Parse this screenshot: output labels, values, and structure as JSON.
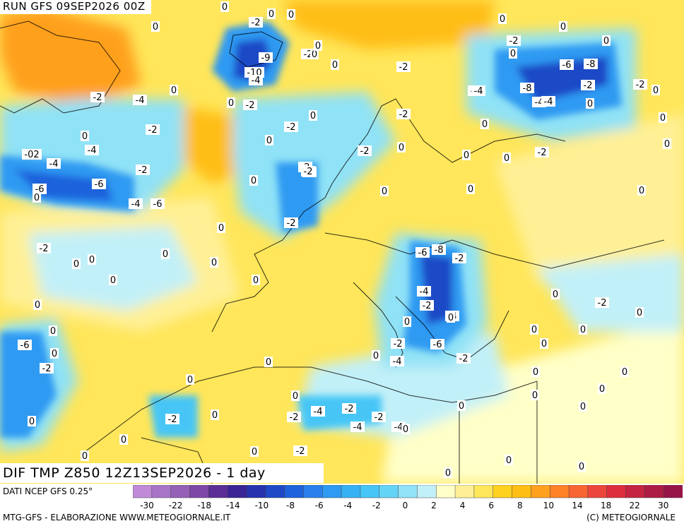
{
  "run_label": "RUN GFS 09SEP2026 00Z",
  "map_title": "DIF TMP Z850 12Z13SEP2026 - 1 day",
  "dati": "DATI NCEP GFS 0.25°",
  "footer_left": "MTG-GFS - ELABORAZIONE WWW.METEOGIORNALE.IT",
  "footer_right": "(C) METEOGIORNALE",
  "colorbar": {
    "colors": [
      "#c08ad8",
      "#a774c8",
      "#9460b8",
      "#7e48a6",
      "#5a2e96",
      "#3a2496",
      "#2632ae",
      "#1e48c6",
      "#1e62dc",
      "#2a80ec",
      "#2e9af2",
      "#36b2f4",
      "#46c6f6",
      "#64d4f6",
      "#90e2f6",
      "#c2f0f8",
      "#ffffc8",
      "#fff096",
      "#ffe65a",
      "#ffd21e",
      "#ffbe14",
      "#ffa01e",
      "#ff8228",
      "#f86432",
      "#ec463c",
      "#dc2e3c",
      "#c42440",
      "#ac1c44",
      "#961448"
    ],
    "tick_labels": [
      "-30",
      "-22",
      "-18",
      "-14",
      "-10",
      "-8",
      "-6",
      "-4",
      "-2",
      "0",
      "2",
      "4",
      "6",
      "8",
      "10",
      "14",
      "18",
      "22",
      "30"
    ]
  },
  "map_values": [
    {
      "t": "0"
    },
    {
      "t": "-2"
    },
    {
      "t": "0"
    },
    {
      "t": "0"
    },
    {
      "t": "-2"
    },
    {
      "t": "-9"
    },
    {
      "t": "-10"
    },
    {
      "t": "-4"
    },
    {
      "t": "-2"
    },
    {
      "t": "0"
    },
    {
      "t": "0"
    },
    {
      "t": "0"
    },
    {
      "t": "-2"
    },
    {
      "t": "-4"
    },
    {
      "t": "0"
    },
    {
      "t": "-2"
    },
    {
      "t": "-2"
    },
    {
      "t": "0"
    },
    {
      "t": "-2"
    },
    {
      "t": "-2"
    },
    {
      "t": "-4"
    },
    {
      "t": "-2"
    },
    {
      "t": "-2"
    },
    {
      "t": "0"
    },
    {
      "t": "-2"
    },
    {
      "t": "-4"
    },
    {
      "t": "0"
    },
    {
      "t": "-02"
    },
    {
      "t": "-4"
    },
    {
      "t": "-2"
    },
    {
      "t": "-6"
    },
    {
      "t": "-6"
    },
    {
      "t": "0"
    },
    {
      "t": "-4"
    },
    {
      "t": "-6"
    },
    {
      "t": "0"
    },
    {
      "t": "-2"
    },
    {
      "t": "-2"
    },
    {
      "t": "0"
    },
    {
      "t": "-2"
    },
    {
      "t": "0"
    },
    {
      "t": "0"
    },
    {
      "t": "0"
    },
    {
      "t": "0"
    },
    {
      "t": "0"
    },
    {
      "t": "0"
    },
    {
      "t": "0"
    },
    {
      "t": "0"
    },
    {
      "t": "0"
    },
    {
      "t": "-2"
    },
    {
      "t": "0"
    },
    {
      "t": "0"
    },
    {
      "t": "0"
    },
    {
      "t": "0"
    },
    {
      "t": "-4"
    },
    {
      "t": "-8"
    },
    {
      "t": "-6"
    },
    {
      "t": "-8"
    },
    {
      "t": "-2"
    },
    {
      "t": "-2"
    },
    {
      "t": "-4"
    },
    {
      "t": "-4"
    },
    {
      "t": "0"
    },
    {
      "t": "0"
    },
    {
      "t": "-2"
    },
    {
      "t": "0"
    },
    {
      "t": "0"
    },
    {
      "t": "0"
    },
    {
      "t": "0"
    },
    {
      "t": "0"
    },
    {
      "t": "-6"
    },
    {
      "t": "-8"
    },
    {
      "t": "-2"
    },
    {
      "t": "-4"
    },
    {
      "t": "-2"
    },
    {
      "t": "-4"
    },
    {
      "t": "0"
    },
    {
      "t": "-6"
    },
    {
      "t": "-2"
    },
    {
      "t": "-2"
    },
    {
      "t": "-4"
    },
    {
      "t": "0"
    },
    {
      "t": "0"
    },
    {
      "t": "0"
    },
    {
      "t": "0"
    },
    {
      "t": "0"
    },
    {
      "t": "0"
    },
    {
      "t": "0"
    },
    {
      "t": "0"
    },
    {
      "t": "0"
    },
    {
      "t": "-2"
    },
    {
      "t": "0"
    },
    {
      "t": "0"
    },
    {
      "t": "0"
    },
    {
      "t": "0"
    },
    {
      "t": "-6"
    },
    {
      "t": "0"
    },
    {
      "t": "-2"
    },
    {
      "t": "0"
    },
    {
      "t": "0"
    },
    {
      "t": "-2"
    },
    {
      "t": "-4"
    },
    {
      "t": "-2"
    },
    {
      "t": "-4"
    },
    {
      "t": "-2"
    },
    {
      "t": "0"
    },
    {
      "t": "0"
    },
    {
      "t": "-2"
    },
    {
      "t": "-4"
    },
    {
      "t": "0"
    },
    {
      "t": "0"
    },
    {
      "t": "0"
    },
    {
      "t": "0"
    },
    {
      "t": "-2"
    },
    {
      "t": "0"
    },
    {
      "t": "0"
    },
    {
      "t": "0"
    },
    {
      "t": "0"
    },
    {
      "t": "0"
    },
    {
      "t": "0"
    },
    {
      "t": "0"
    },
    {
      "t": "0"
    },
    {
      "t": "0"
    },
    {
      "t": "0"
    }
  ]
}
